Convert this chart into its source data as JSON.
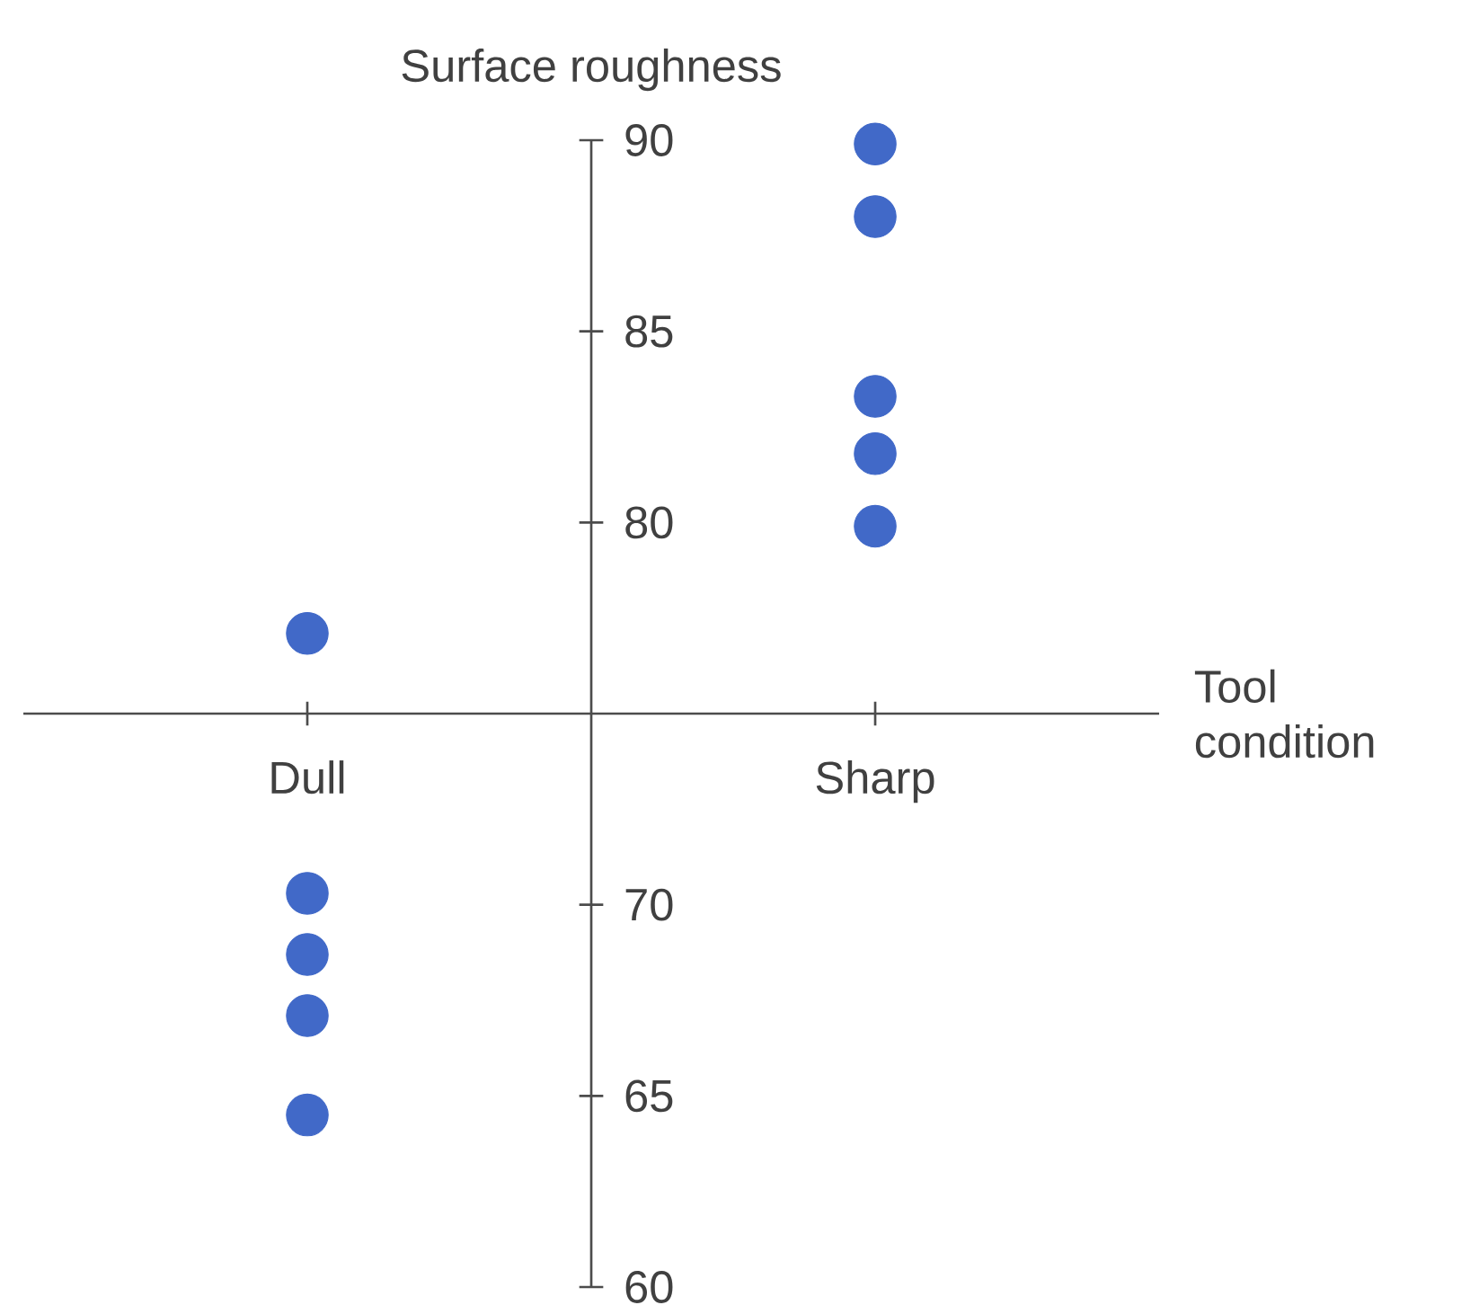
{
  "chart_data": {
    "type": "scatter",
    "xlabel": "Tool condition",
    "ylabel": "Surface roughness",
    "categories": [
      "Dull",
      "Sharp"
    ],
    "ylim": [
      60,
      90
    ],
    "yticks": [
      60,
      65,
      70,
      80,
      85,
      90
    ],
    "marker": "circle",
    "series": [
      {
        "x": [
          "Dull",
          "Dull",
          "Dull",
          "Dull",
          "Dull",
          "Sharp",
          "Sharp",
          "Sharp",
          "Sharp",
          "Sharp"
        ],
        "values": [
          77.1,
          70.3,
          68.7,
          67.1,
          64.5,
          89.9,
          88.0,
          83.3,
          81.8,
          79.9
        ],
        "color": "#4169c8"
      }
    ]
  }
}
